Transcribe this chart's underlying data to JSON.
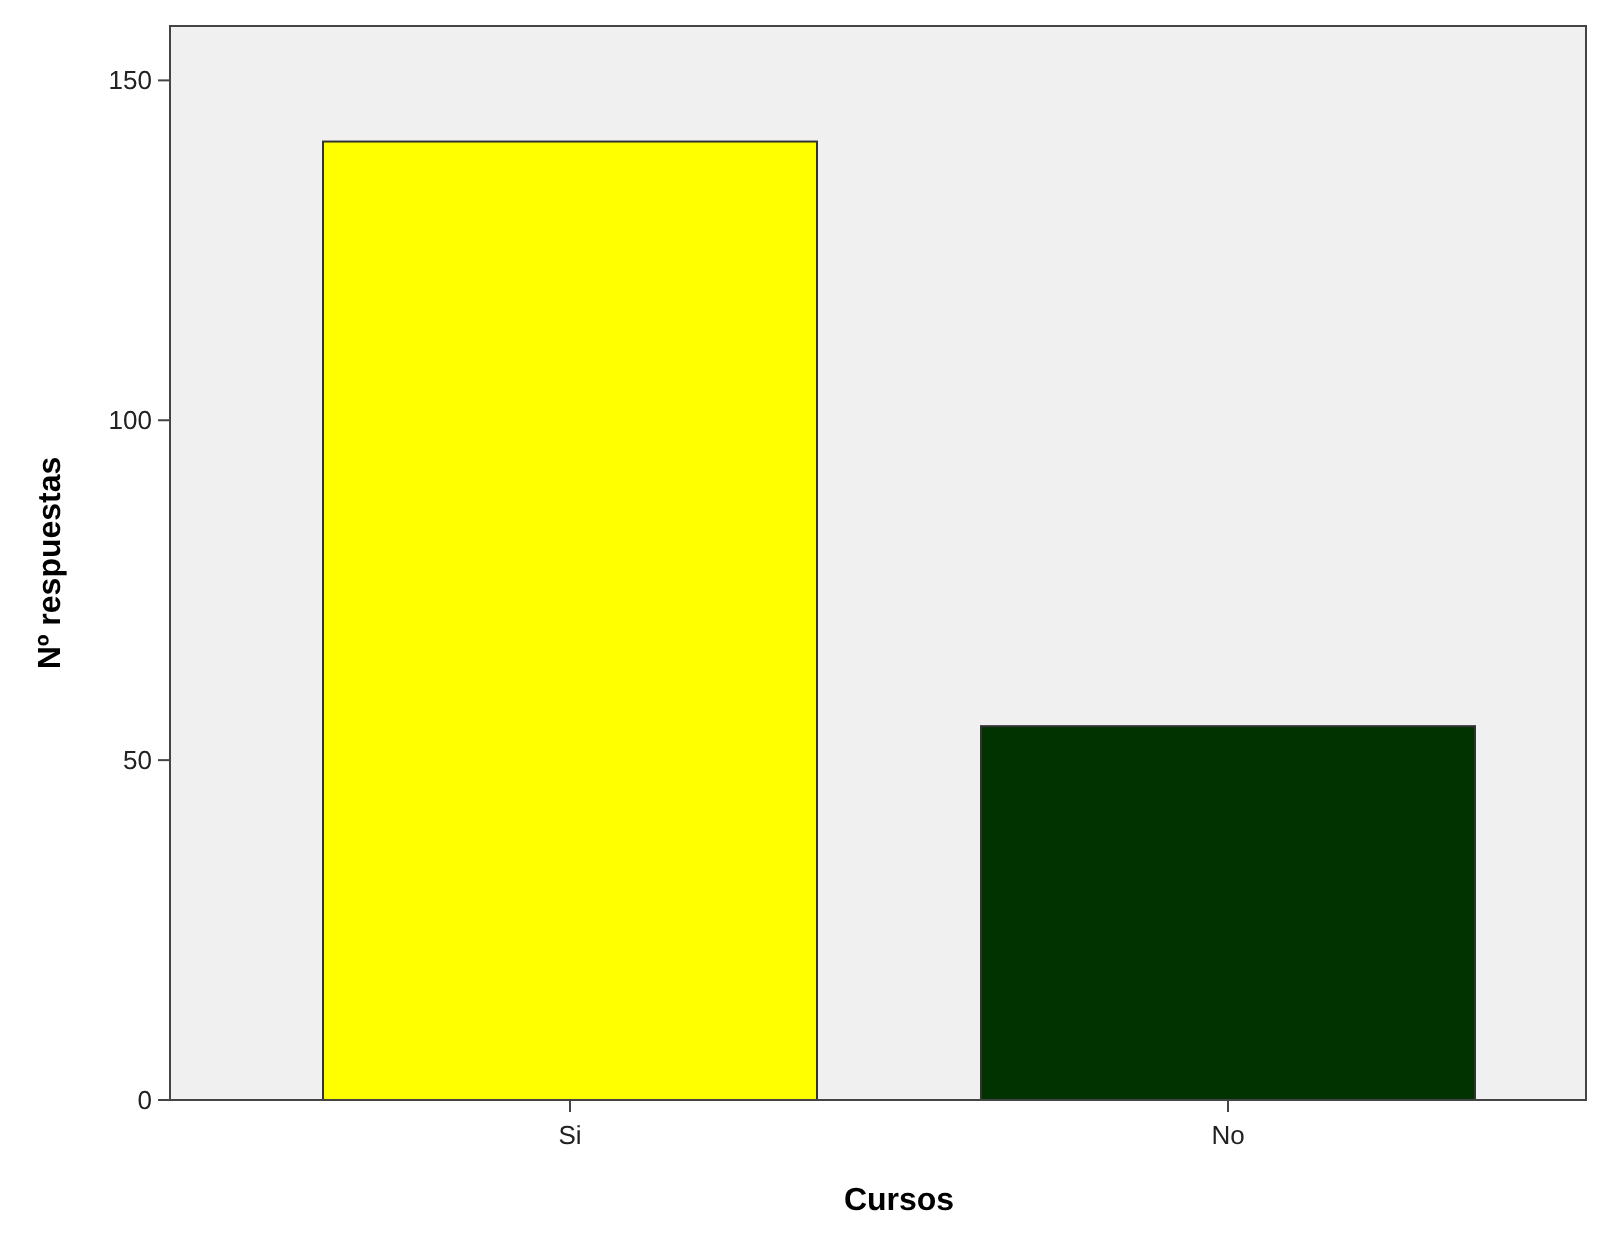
{
  "chart_data": {
    "type": "bar",
    "xlabel": "Cursos",
    "ylabel": "Nº respuestas",
    "categories": [
      "Si",
      "No"
    ],
    "values": [
      141,
      55
    ],
    "colors": [
      "#ffff00",
      "#003300"
    ],
    "ylim": [
      0,
      158
    ],
    "yticks": [
      0,
      50,
      100,
      150
    ],
    "grid": false
  }
}
